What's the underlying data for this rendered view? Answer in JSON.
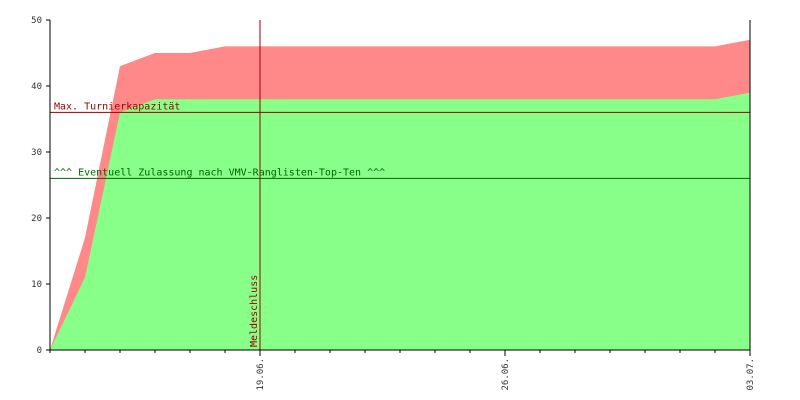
{
  "chart_data": {
    "type": "area",
    "ylim": [
      0,
      50
    ],
    "y_ticks": [
      0,
      10,
      20,
      30,
      40,
      50
    ],
    "x_range": [
      "2011-06-13",
      "2011-07-03"
    ],
    "x_ticks": [
      {
        "date": "2011-06-19",
        "label": "19.06."
      },
      {
        "date": "2011-06-26",
        "label": "26.06."
      },
      {
        "date": "2011-07-03",
        "label": "03.07."
      }
    ],
    "grid": false,
    "series": [
      {
        "color": "#ff8888",
        "x": [
          "2011-06-13",
          "2011-06-14",
          "2011-06-15",
          "2011-06-16",
          "2011-06-17",
          "2011-06-18",
          "2011-06-19",
          "2011-06-20",
          "2011-06-21",
          "2011-06-22",
          "2011-06-23",
          "2011-06-24",
          "2011-06-25",
          "2011-06-26",
          "2011-06-27",
          "2011-06-28",
          "2011-06-29",
          "2011-06-30",
          "2011-07-01",
          "2011-07-02",
          "2011-07-03"
        ],
        "values": [
          0,
          17,
          43,
          45,
          45,
          46,
          46,
          46,
          46,
          46,
          46,
          46,
          46,
          46,
          46,
          46,
          46,
          46,
          46,
          46,
          47
        ]
      },
      {
        "color": "#88ff88",
        "x": [
          "2011-06-13",
          "2011-06-14",
          "2011-06-15",
          "2011-06-16",
          "2011-06-17",
          "2011-06-18",
          "2011-06-19",
          "2011-06-20",
          "2011-06-21",
          "2011-06-22",
          "2011-06-23",
          "2011-06-24",
          "2011-06-25",
          "2011-06-26",
          "2011-06-27",
          "2011-06-28",
          "2011-06-29",
          "2011-06-30",
          "2011-07-01",
          "2011-07-02",
          "2011-07-03"
        ],
        "values": [
          0,
          11,
          36,
          38,
          38,
          38,
          38,
          38,
          38,
          38,
          38,
          38,
          38,
          38,
          38,
          38,
          38,
          38,
          38,
          38,
          39
        ]
      }
    ],
    "reference_lines": [
      {
        "orientation": "horizontal",
        "value": 36,
        "label": "Max. Turnierkapazität",
        "color": "#990000"
      },
      {
        "orientation": "horizontal",
        "value": 26,
        "label": "^^^ Eventuell Zulassung nach VMV-Ranglisten-Top-Ten ^^^",
        "color": "#006600"
      },
      {
        "orientation": "vertical",
        "date": "2011-06-19",
        "label": "Meldeschluss",
        "color": "#990000"
      }
    ]
  }
}
